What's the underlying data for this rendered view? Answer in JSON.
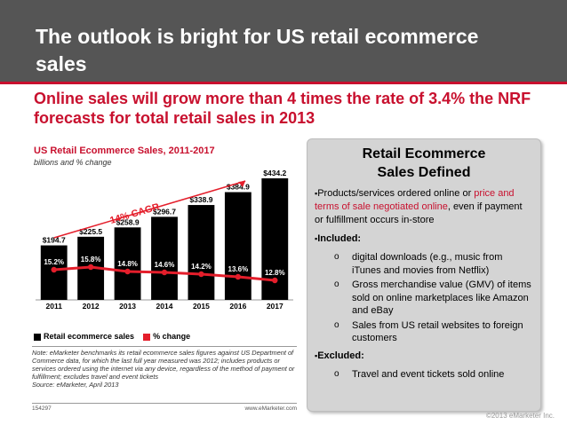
{
  "slide": {
    "title": "The outlook is bright for US retail ecommerce sales",
    "subtitle": "Online sales will grow more than 4 times the rate of 3.4% the NRF forecasts for total retail sales in 2013",
    "copyright": "©2013 eMarketer Inc."
  },
  "panel": {
    "title_line1": "Retail Ecommerce",
    "title_line2": "Sales Defined",
    "def_part1": "Products/services ordered online or ",
    "def_red": "price and terms of sale negotiated online",
    "def_part2": ", even if payment or fulfillment occurs in-store",
    "included_label": "Included:",
    "included": [
      "digital downloads (e.g., music from iTunes and movies from Netflix)",
      "Gross merchandise value (GMV) of items sold on online marketplaces like Amazon and eBay",
      "Sales from US retail websites to foreign customers"
    ],
    "excluded_label": "Excluded:",
    "excluded": [
      "Travel and event tickets sold online"
    ]
  },
  "chart_data": {
    "type": "bar",
    "title": "US Retail Ecommerce Sales, 2011-2017",
    "subtitle": "billions and % change",
    "categories": [
      "2011",
      "2012",
      "2013",
      "2014",
      "2015",
      "2016",
      "2017"
    ],
    "series": [
      {
        "name": "Retail ecommerce sales",
        "values": [
          194.7,
          225.5,
          258.9,
          296.7,
          338.9,
          384.9,
          434.2
        ],
        "labels": [
          "$194.7",
          "$225.5",
          "$258.9",
          "$296.7",
          "$338.9",
          "$384.9",
          "$434.2"
        ]
      },
      {
        "name": "% change",
        "values": [
          15.2,
          15.8,
          14.8,
          14.6,
          14.2,
          13.6,
          12.8
        ],
        "labels": [
          "15.2%",
          "15.8%",
          "14.8%",
          "14.6%",
          "14.2%",
          "13.6%",
          "12.8%"
        ]
      }
    ],
    "annotation": "14% CAGR",
    "ylim": [
      0,
      450
    ],
    "colors": {
      "bar": "#000000",
      "line": "#e41e2b",
      "accent": "#c8102e"
    },
    "note": "Note: eMarketer benchmarks its retail ecommerce sales figures against US Department of Commerce data, for which the last full year measured was 2012; includes products or services ordered using the internet via any device, regardless of the method of payment or fulfillment; excludes travel and event tickets",
    "source": "Source: eMarketer, April 2013",
    "id": "154297",
    "website": "www.eMarketer.com"
  }
}
